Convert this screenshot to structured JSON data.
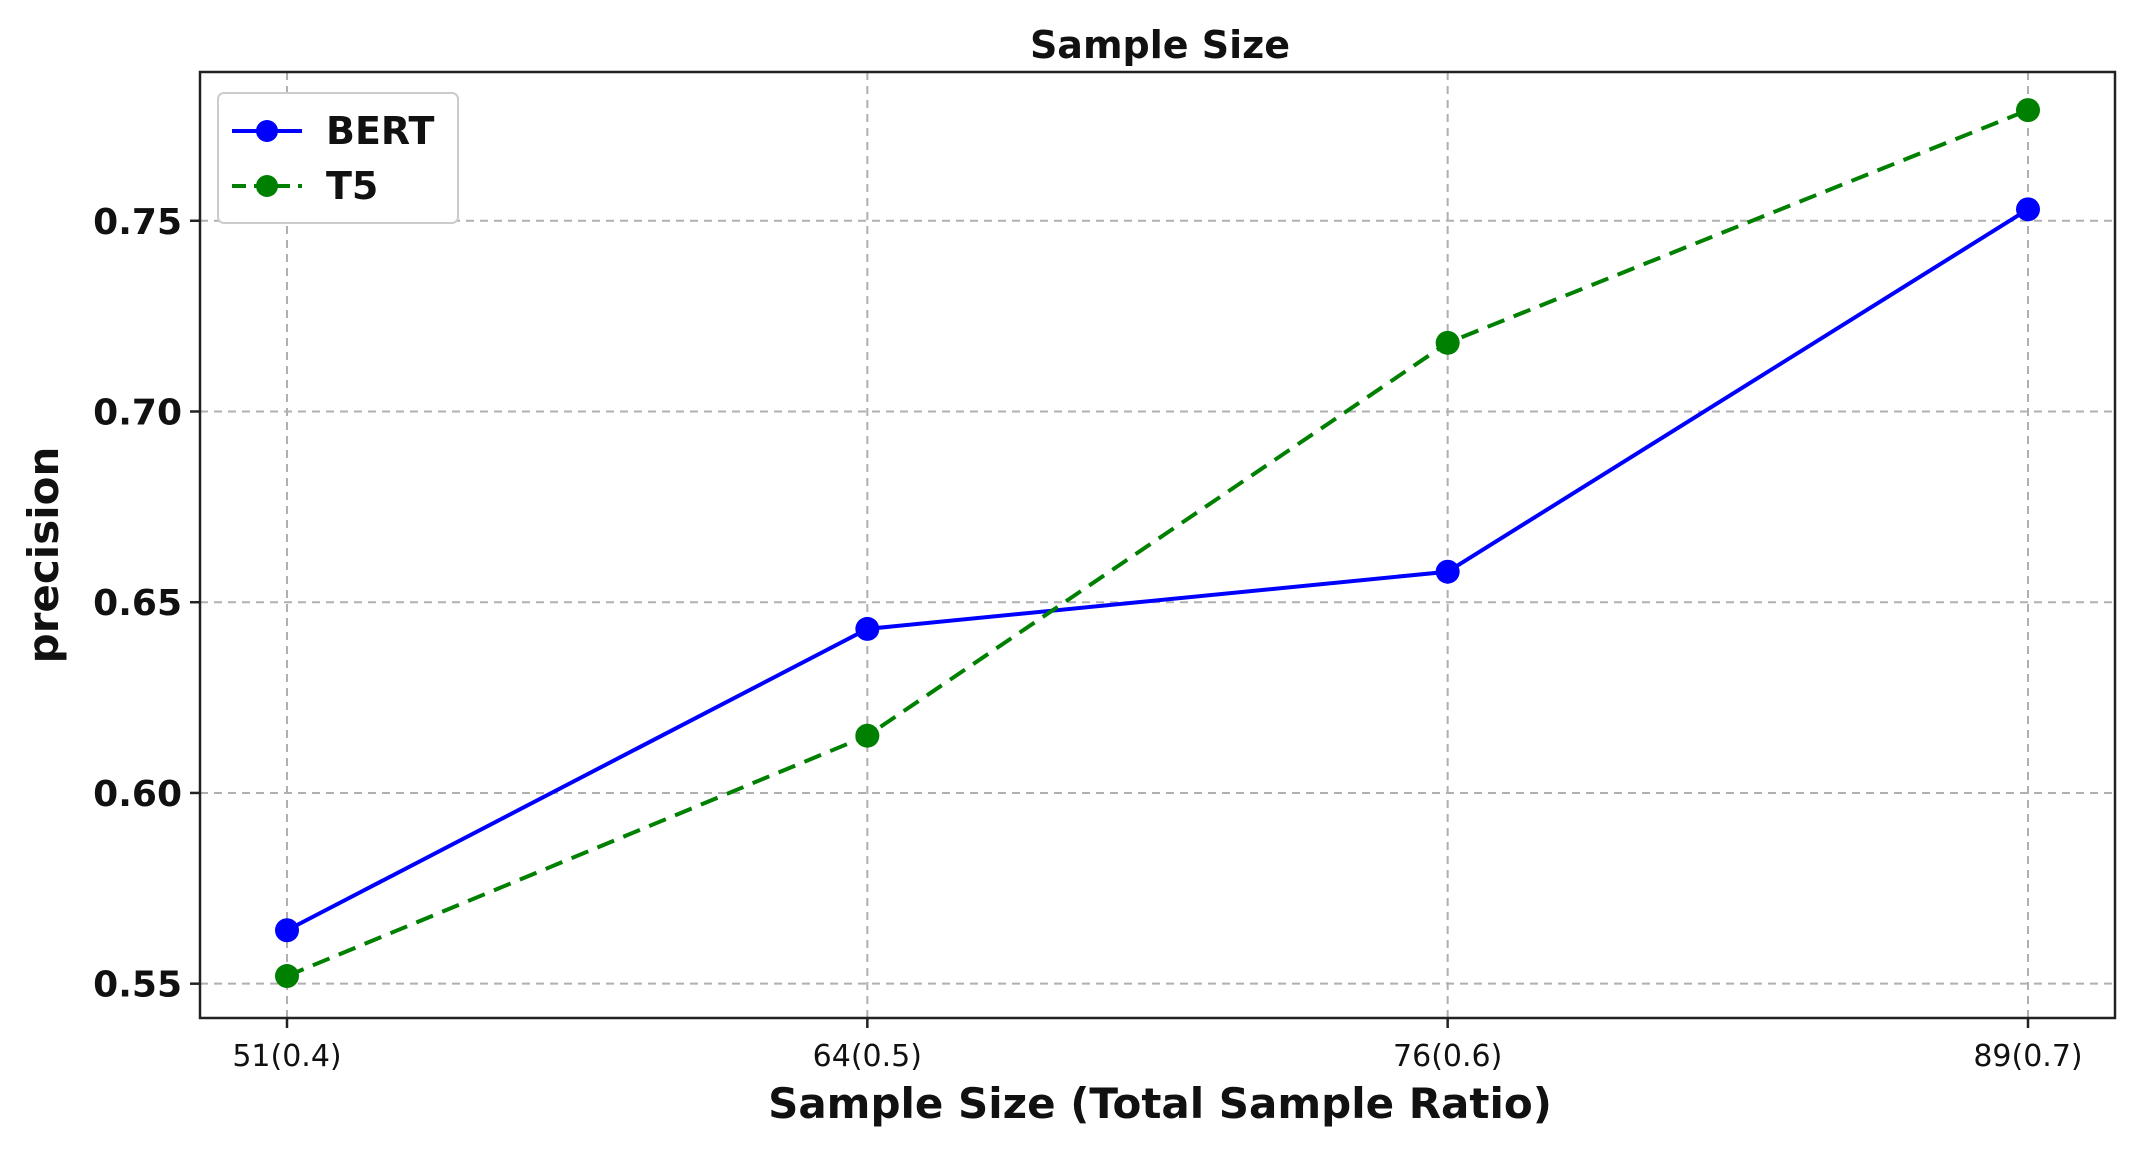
{
  "chart_data": {
    "type": "line",
    "title": "Sample Size",
    "xlabel": "Sample Size (Total Sample Ratio)",
    "ylabel": "precision",
    "categories": [
      "51(0.4)",
      "64(0.5)",
      "76(0.6)",
      "89(0.7)"
    ],
    "yticks": [
      "0.55",
      "0.60",
      "0.65",
      "0.70",
      "0.75"
    ],
    "ylim": [
      0.541,
      0.789
    ],
    "grid": true,
    "legend_position": "top-left",
    "series": [
      {
        "name": "BERT",
        "values": [
          0.564,
          0.643,
          0.658,
          0.753
        ],
        "color": "#0000ff",
        "line_style": "solid",
        "marker": "circle"
      },
      {
        "name": "T5",
        "values": [
          0.552,
          0.615,
          0.718,
          0.779
        ],
        "color": "#008000",
        "line_style": "dashed",
        "marker": "circle"
      }
    ]
  }
}
